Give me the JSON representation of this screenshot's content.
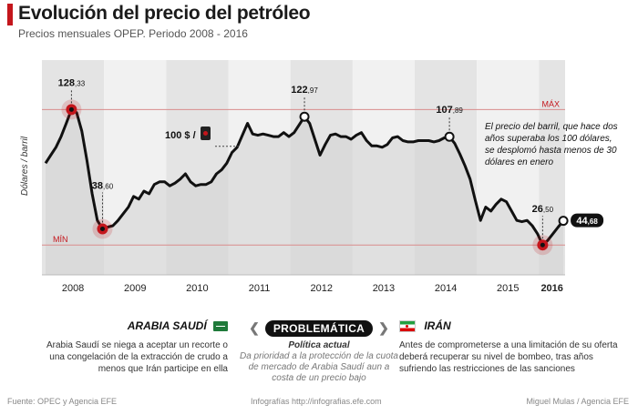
{
  "header": {
    "title": "Evolución del precio del petróleo",
    "subtitle": "Precios mensuales OPEP. Periodo 2008 - 2016"
  },
  "colors": {
    "accent": "#c4161c",
    "line": "#111111",
    "band_dark": "#e4e4e4",
    "band_light": "#f1f1f1",
    "fill": "#d2d2d2"
  },
  "chart_data": {
    "type": "line",
    "title": "Evolución del precio del petróleo",
    "ylabel": "Dólares / barril",
    "xlabel": "",
    "ylim": [
      15,
      145
    ],
    "x_ticks": [
      "2008",
      "2009",
      "2010",
      "2011",
      "2012",
      "2013",
      "2014",
      "2015",
      "2016"
    ],
    "series": [
      {
        "name": "Precio mensual OPEP",
        "values": [
          88,
          94,
          100,
          108,
          118,
          128.33,
          126,
          112,
          90,
          65,
          45,
          38.6,
          40,
          41,
          45,
          50,
          55,
          63,
          61,
          67,
          65,
          72,
          74,
          74,
          71,
          73,
          76,
          80,
          74,
          71,
          72,
          72,
          74,
          80,
          83,
          88,
          96,
          100,
          109,
          118,
          110,
          109,
          110,
          109,
          108,
          108,
          111,
          108,
          111,
          117,
          122.97,
          118,
          106,
          94,
          102,
          109,
          110,
          108,
          108,
          106,
          109,
          111,
          105,
          101,
          101,
          100,
          102,
          107,
          108,
          105,
          104,
          104,
          105,
          105,
          105,
          104,
          105,
          107,
          107.89,
          103,
          95,
          86,
          76,
          60,
          45,
          55,
          52,
          57,
          61,
          59,
          52,
          45,
          44,
          45,
          41,
          35,
          26.5,
          30,
          35,
          40,
          44.68
        ]
      }
    ],
    "reference_lines": [
      {
        "label": "MÁX",
        "value": 128.33
      },
      {
        "label": "MÍN",
        "value": 26.5
      }
    ],
    "annotations": [
      {
        "index": 5,
        "int": "128",
        "dec": ",33"
      },
      {
        "index": 11,
        "int": "38",
        "dec": ",60"
      },
      {
        "index": 50,
        "int": "122",
        "dec": ",97"
      },
      {
        "index": 78,
        "int": "107",
        "dec": ",89"
      },
      {
        "index": 96,
        "int": "26",
        "dec": ",50"
      },
      {
        "index": 100,
        "int": "44",
        "dec": ",68"
      }
    ],
    "reference_marker": "100 $ /"
  },
  "note": "El precio del barril, que hace dos años superaba los 100 dólares, se desplomó hasta menos de 30 dólares en enero",
  "sections": {
    "left": {
      "heading": "ARABIA SAUDÍ",
      "text": "Arabia Saudí se niega a aceptar un recorte o una congelación de la extracción de crudo a menos que Irán participe en ella"
    },
    "middle": {
      "heading": "PROBLEMÁTICA",
      "label": "Política actual",
      "text": "Da prioridad a la protección de la cuota de mercado de Arabia Saudí aun a costa de un precio bajo"
    },
    "right": {
      "heading": "IRÁN",
      "text": "Antes de comprometerse a una limitación de su oferta deberá recuperar su nivel de bombeo, tras años sufriendo las restricciones de las sanciones"
    }
  },
  "footer": {
    "source": "Fuente: OPEC y Agencia EFE",
    "credit": "Infografías http://infografias.efe.com",
    "author": "Miguel Mulas / Agencia EFE"
  }
}
